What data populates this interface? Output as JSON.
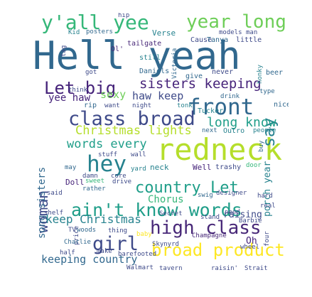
{
  "palette": {
    "deep_purple": "#46237a",
    "purple": "#482878",
    "indigo": "#3e4a89",
    "blue": "#31688e",
    "teal": "#26828e",
    "cyan": "#1f9e89",
    "green": "#35b779",
    "lime": "#6ece58",
    "chartreuse": "#b5de2b",
    "yellow": "#fde725"
  },
  "words": [
    "Hell yeah",
    "redneck",
    "ain't know words",
    "country Let",
    "high class",
    "hey",
    "front",
    "class broad",
    "y'all yee",
    "year long",
    "Let big",
    "broad product",
    "girl",
    "woman",
    "say",
    "sisters keeping",
    "long know",
    "Christmas lights",
    "words every",
    "keep Christmas",
    "keeping country",
    "song sisters",
    "porch year",
    "haw keep",
    "yee haw",
    "sexy",
    "Chorus",
    "raising",
    "Well",
    "neck",
    "trashy",
    "door",
    "Oh",
    "hip",
    "tag",
    "Kid",
    "posters",
    "Verse",
    "Cause",
    "models",
    "man",
    "Tanya",
    "little",
    "Victoria",
    "tailgate",
    "Ol'",
    "still",
    "honky",
    "beer",
    "got",
    "Daniels",
    "give",
    "never",
    "type",
    "think",
    "drink",
    "nice",
    "rip",
    "want",
    "night",
    "tonk",
    "Tucker",
    "next",
    "Outro",
    "people",
    "buy",
    "stuff",
    "wall",
    "may",
    "damn",
    "Doll",
    "sweet",
    "drive",
    "core",
    "rather",
    "yard",
    "swig",
    "designer",
    "hard",
    "said",
    "real",
    "shelf",
    "need",
    "Secret",
    "stand",
    "Barbie",
    "price",
    "TV",
    "woods",
    "thing",
    "baby",
    "Champagne",
    "four",
    "Charlie",
    "Skynyrd",
    "wheel",
    "half",
    "make",
    "barefooted",
    "Walmart",
    "tavern",
    "raisin'",
    "Strait"
  ]
}
